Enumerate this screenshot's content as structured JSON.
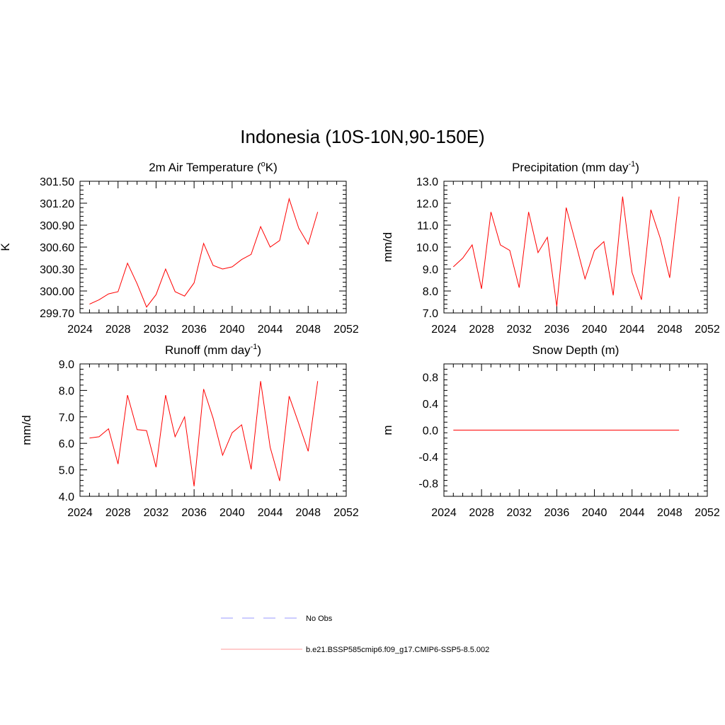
{
  "title": "Indonesia (10S-10N,90-150E)",
  "chart_data": [
    {
      "type": "line",
      "title": "2m Air Temperature",
      "title_unit": "K",
      "title_unit_sup": "o",
      "title_prefix": "(",
      "title_suffix": ")",
      "ylabel": "K",
      "xlim": [
        2024,
        2052
      ],
      "ylim": [
        299.7,
        301.5
      ],
      "x_ticks": [
        2024,
        2028,
        2032,
        2036,
        2040,
        2044,
        2048,
        2052
      ],
      "y_ticks": [
        "299.70",
        "300.00",
        "300.30",
        "300.60",
        "300.90",
        "301.20",
        "301.50"
      ],
      "series": [
        {
          "color": "#ff0000",
          "x": [
            2025,
            2026,
            2027,
            2028,
            2029,
            2030,
            2031,
            2032,
            2033,
            2034,
            2035,
            2036,
            2037,
            2038,
            2039,
            2040,
            2041,
            2042,
            2043,
            2044,
            2045,
            2046,
            2047,
            2048,
            2049
          ],
          "y": [
            299.82,
            299.88,
            299.96,
            299.99,
            300.38,
            300.1,
            299.78,
            299.95,
            300.3,
            299.99,
            299.93,
            300.11,
            300.65,
            300.35,
            300.3,
            300.33,
            300.43,
            300.5,
            300.88,
            300.6,
            300.69,
            301.26,
            300.86,
            300.64,
            301.08
          ]
        }
      ]
    },
    {
      "type": "line",
      "title": "Precipitation",
      "title_unit": "mm day",
      "title_unit_sup": "-1",
      "title_prefix": "(",
      "title_suffix": ")",
      "ylabel": "mm/d",
      "xlim": [
        2024,
        2052
      ],
      "ylim": [
        7.0,
        13.0
      ],
      "x_ticks": [
        2024,
        2028,
        2032,
        2036,
        2040,
        2044,
        2048,
        2052
      ],
      "y_ticks": [
        "7.0",
        "8.0",
        "9.0",
        "10.0",
        "11.0",
        "12.0",
        "13.0"
      ],
      "series": [
        {
          "color": "#ff0000",
          "x": [
            2025,
            2026,
            2027,
            2028,
            2029,
            2030,
            2031,
            2032,
            2033,
            2034,
            2035,
            2036,
            2037,
            2038,
            2039,
            2040,
            2041,
            2042,
            2043,
            2044,
            2045,
            2046,
            2047,
            2048,
            2049
          ],
          "y": [
            9.1,
            9.5,
            10.1,
            8.1,
            11.6,
            10.1,
            9.85,
            8.15,
            11.6,
            9.75,
            10.45,
            7.3,
            11.8,
            10.2,
            8.55,
            9.85,
            10.25,
            7.8,
            12.3,
            8.85,
            7.6,
            11.7,
            10.4,
            8.6,
            12.3
          ]
        }
      ]
    },
    {
      "type": "line",
      "title": "Runoff",
      "title_unit": "mm day",
      "title_unit_sup": "-1",
      "title_prefix": "(",
      "title_suffix": ")",
      "ylabel": "mm/d",
      "xlim": [
        2024,
        2052
      ],
      "ylim": [
        4.0,
        9.0
      ],
      "x_ticks": [
        2024,
        2028,
        2032,
        2036,
        2040,
        2044,
        2048,
        2052
      ],
      "y_ticks": [
        "4.0",
        "5.0",
        "6.0",
        "7.0",
        "8.0",
        "9.0"
      ],
      "series": [
        {
          "color": "#ff0000",
          "x": [
            2025,
            2026,
            2027,
            2028,
            2029,
            2030,
            2031,
            2032,
            2033,
            2034,
            2035,
            2036,
            2037,
            2038,
            2039,
            2040,
            2041,
            2042,
            2043,
            2044,
            2045,
            2046,
            2047,
            2048,
            2049
          ],
          "y": [
            6.2,
            6.25,
            6.55,
            5.22,
            7.82,
            6.52,
            6.48,
            5.1,
            7.82,
            6.25,
            7.0,
            4.38,
            8.05,
            6.95,
            5.55,
            6.4,
            6.7,
            5.02,
            8.35,
            5.85,
            4.58,
            7.78,
            6.75,
            5.7,
            8.35
          ]
        }
      ]
    },
    {
      "type": "line",
      "title": "Snow Depth (m)",
      "title_unit": "",
      "title_unit_sup": "",
      "title_prefix": "",
      "title_suffix": "",
      "ylabel": "m",
      "xlim": [
        2024,
        2052
      ],
      "ylim": [
        -1.0,
        1.0
      ],
      "x_ticks": [
        2024,
        2028,
        2032,
        2036,
        2040,
        2044,
        2048,
        2052
      ],
      "y_ticks": [
        "-0.8",
        "-0.4",
        "0.0",
        "0.4",
        "0.8"
      ],
      "series": [
        {
          "color": "#ff0000",
          "x": [
            2025,
            2026,
            2027,
            2028,
            2029,
            2030,
            2031,
            2032,
            2033,
            2034,
            2035,
            2036,
            2037,
            2038,
            2039,
            2040,
            2041,
            2042,
            2043,
            2044,
            2045,
            2046,
            2047,
            2048,
            2049
          ],
          "y": [
            0,
            0,
            0,
            0,
            0,
            0,
            0,
            0,
            0,
            0,
            0,
            0,
            0,
            0,
            0,
            0,
            0,
            0,
            0,
            0,
            0,
            0,
            0,
            0,
            0
          ]
        }
      ]
    }
  ],
  "legend": [
    {
      "label": "No Obs",
      "color": "#9999ff",
      "style": "dashed"
    },
    {
      "label": "b.e21.BSSP585cmip6.f09_g17.CMIP6-SSP5-8.5.002",
      "color": "#ff9999",
      "style": "solid"
    }
  ]
}
